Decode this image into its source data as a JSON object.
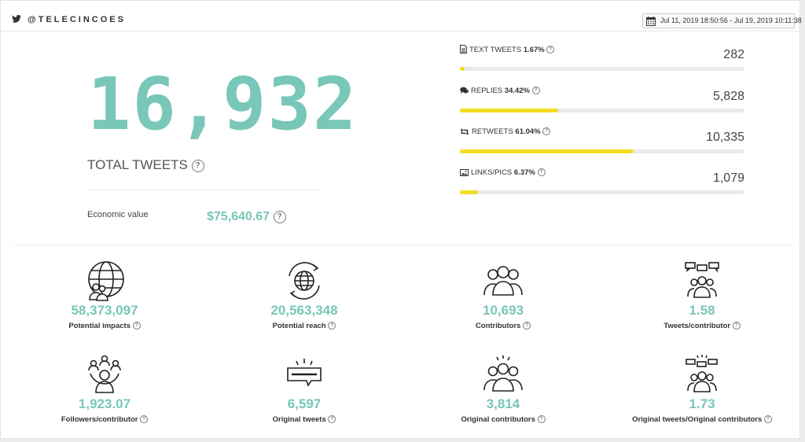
{
  "header": {
    "handle": "@TELECINCOES",
    "date_range": "Jul 11, 2019 18:50:56 - Jul 19, 2019 10:11:38"
  },
  "summary": {
    "total_tweets": "16,932",
    "total_label": "TOTAL TWEETS",
    "economic_label": "Economic value",
    "economic_value": "$75,640.67"
  },
  "breakdown": [
    {
      "label": "TEXT TWEETS",
      "pct": "1.67%",
      "value": "282",
      "fraction": 0.0167,
      "icon": "document-icon"
    },
    {
      "label": "REPLIES",
      "pct": "34.42%",
      "value": "5,828",
      "fraction": 0.3442,
      "icon": "speech-bubbles-icon"
    },
    {
      "label": "RETWEETS",
      "pct": "61.04%",
      "value": "10,335",
      "fraction": 0.6104,
      "icon": "retweet-icon"
    },
    {
      "label": "LINKS/PICS",
      "pct": "6.37%",
      "value": "1,079",
      "fraction": 0.0637,
      "icon": "image-icon"
    }
  ],
  "metrics": [
    {
      "value": "58,373,097",
      "label": "Potential impacts",
      "icon": "globe-people-icon"
    },
    {
      "value": "20,563,348",
      "label": "Potential reach",
      "icon": "globe-cycle-icon"
    },
    {
      "value": "10,693",
      "label": "Contributors",
      "icon": "group-icon"
    },
    {
      "value": "1.58",
      "label": "Tweets/contributor",
      "icon": "group-chat-icon"
    },
    {
      "value": "1,923.07",
      "label": "Followers/contributor",
      "icon": "network-people-icon"
    },
    {
      "value": "6,597",
      "label": "Original tweets",
      "icon": "message-icon"
    },
    {
      "value": "3,814",
      "label": "Original contributors",
      "icon": "group-spark-icon"
    },
    {
      "value": "1.73",
      "label": "Original tweets/Original contributors",
      "icon": "group-chat-spark-icon"
    }
  ],
  "colors": {
    "accent": "#78c7b8",
    "bar_fill": "#f3dd1f",
    "bar_track": "#eaeaea"
  }
}
